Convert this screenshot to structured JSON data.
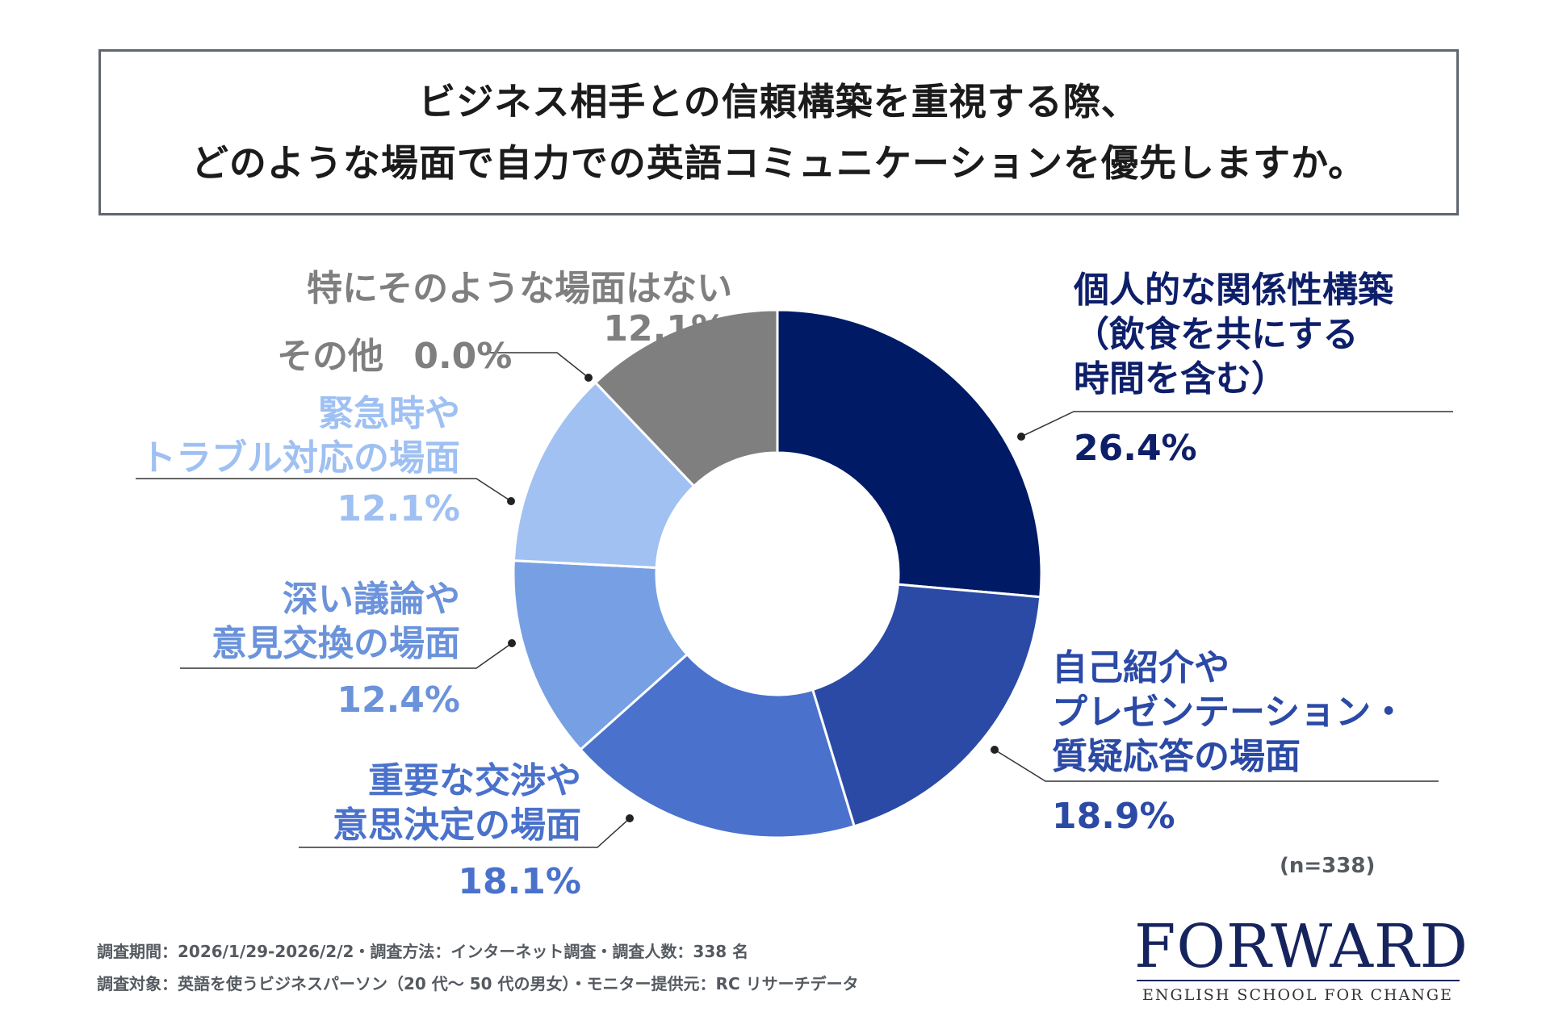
{
  "title": {
    "line1": "ビジネス相手との信頼構築を重視する際、",
    "line2": "どのような場面で自力での英語コミュニケーションを優先しますか。"
  },
  "chart_data": {
    "type": "pie",
    "subtype": "donut",
    "sample": "(n=338)",
    "slices": [
      {
        "label_lines": [
          "個人的な関係性構築",
          "（飲食を共にする",
          "時間を含む）"
        ],
        "value": 26.4,
        "value_label": "26.4%",
        "color": "#001a66",
        "label_color": "#0e1f6a"
      },
      {
        "label_lines": [
          "自己紹介や",
          "プレゼンテーション・",
          "質疑応答の場面"
        ],
        "value": 18.9,
        "value_label": "18.9%",
        "color": "#2b4aa6",
        "label_color": "#2b4aa6"
      },
      {
        "label_lines": [
          "重要な交渉や",
          "意思決定の場面"
        ],
        "value": 18.1,
        "value_label": "18.1%",
        "color": "#4a72cc",
        "label_color": "#4a72cc"
      },
      {
        "label_lines": [
          "深い議論や",
          "意見交換の場面"
        ],
        "value": 12.4,
        "value_label": "12.4%",
        "color": "#779fe3",
        "label_color": "#6b93db"
      },
      {
        "label_lines": [
          "緊急時や",
          "トラブル対応の場面"
        ],
        "value": 12.1,
        "value_label": "12.1%",
        "color": "#a1c1f3",
        "label_color": "#9fc0f2"
      },
      {
        "label_lines": [
          "その他"
        ],
        "value": 0.0,
        "value_label": "0.0%",
        "color": "#bdbdbd",
        "label_color": "#7f7f7f"
      },
      {
        "label_lines": [
          "特にそのような場面はない"
        ],
        "value": 12.1,
        "value_label": "12.1%",
        "color": "#7f7f7f",
        "label_color": "#7f7f7f"
      }
    ]
  },
  "footer": {
    "line1": "調査期間：2026/1/29-2026/2/2・調査方法：インターネット調査・調査人数：338 名",
    "line2": "調査対象：英語を使うビジネスパーソン（20 代〜 50 代の男女）・モニター提供元：RC リサーチデータ"
  },
  "logo": {
    "name": "FORWARD",
    "tagline": "ENGLISH SCHOOL FOR CHANGE"
  }
}
